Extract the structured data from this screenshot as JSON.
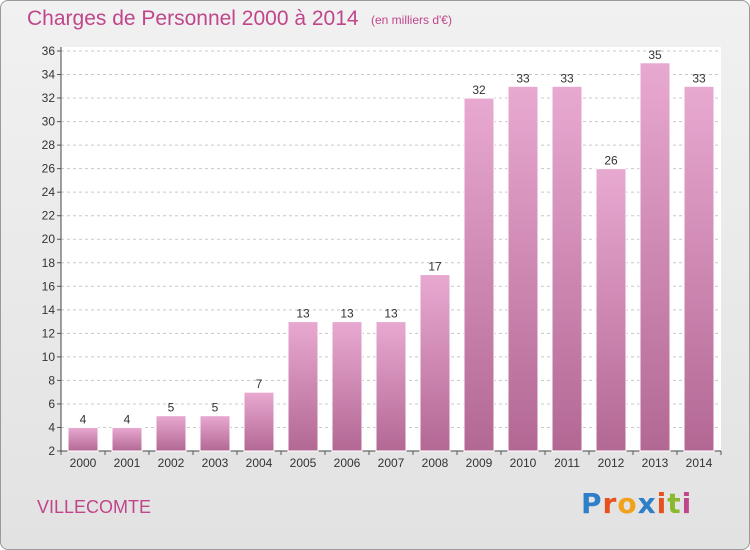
{
  "header": {
    "title": "Charges de Personnel 2000 à 2014",
    "subtitle": "(en milliers d'€)"
  },
  "footer": {
    "commune": "VILLECOMTE",
    "logo_text": "Proxiti",
    "logo_colors": [
      "#2f7fc8",
      "#e6511f",
      "#f0a21a",
      "#2f7fc8",
      "#e6511f",
      "#8ab92d",
      "#c0468b"
    ]
  },
  "colors": {
    "bar_light": "#e8a9d1",
    "bar_dark": "#b36894",
    "text_accent": "#c0468b",
    "grid": "#c8c8c8"
  },
  "chart_data": {
    "type": "bar",
    "title": "Charges de Personnel 2000 à 2014",
    "subtitle": "(en milliers d'€)",
    "xlabel": "",
    "ylabel": "",
    "ylim": [
      2,
      36
    ],
    "yticks": [
      2,
      4,
      6,
      8,
      10,
      12,
      14,
      16,
      18,
      20,
      22,
      24,
      26,
      28,
      30,
      32,
      34,
      36
    ],
    "grid": true,
    "categories": [
      "2000",
      "2001",
      "2002",
      "2003",
      "2004",
      "2005",
      "2006",
      "2007",
      "2008",
      "2009",
      "2010",
      "2011",
      "2012",
      "2013",
      "2014"
    ],
    "values": [
      4,
      4,
      5,
      5,
      7,
      13,
      13,
      13,
      17,
      32,
      33,
      33,
      26,
      35,
      33
    ]
  }
}
